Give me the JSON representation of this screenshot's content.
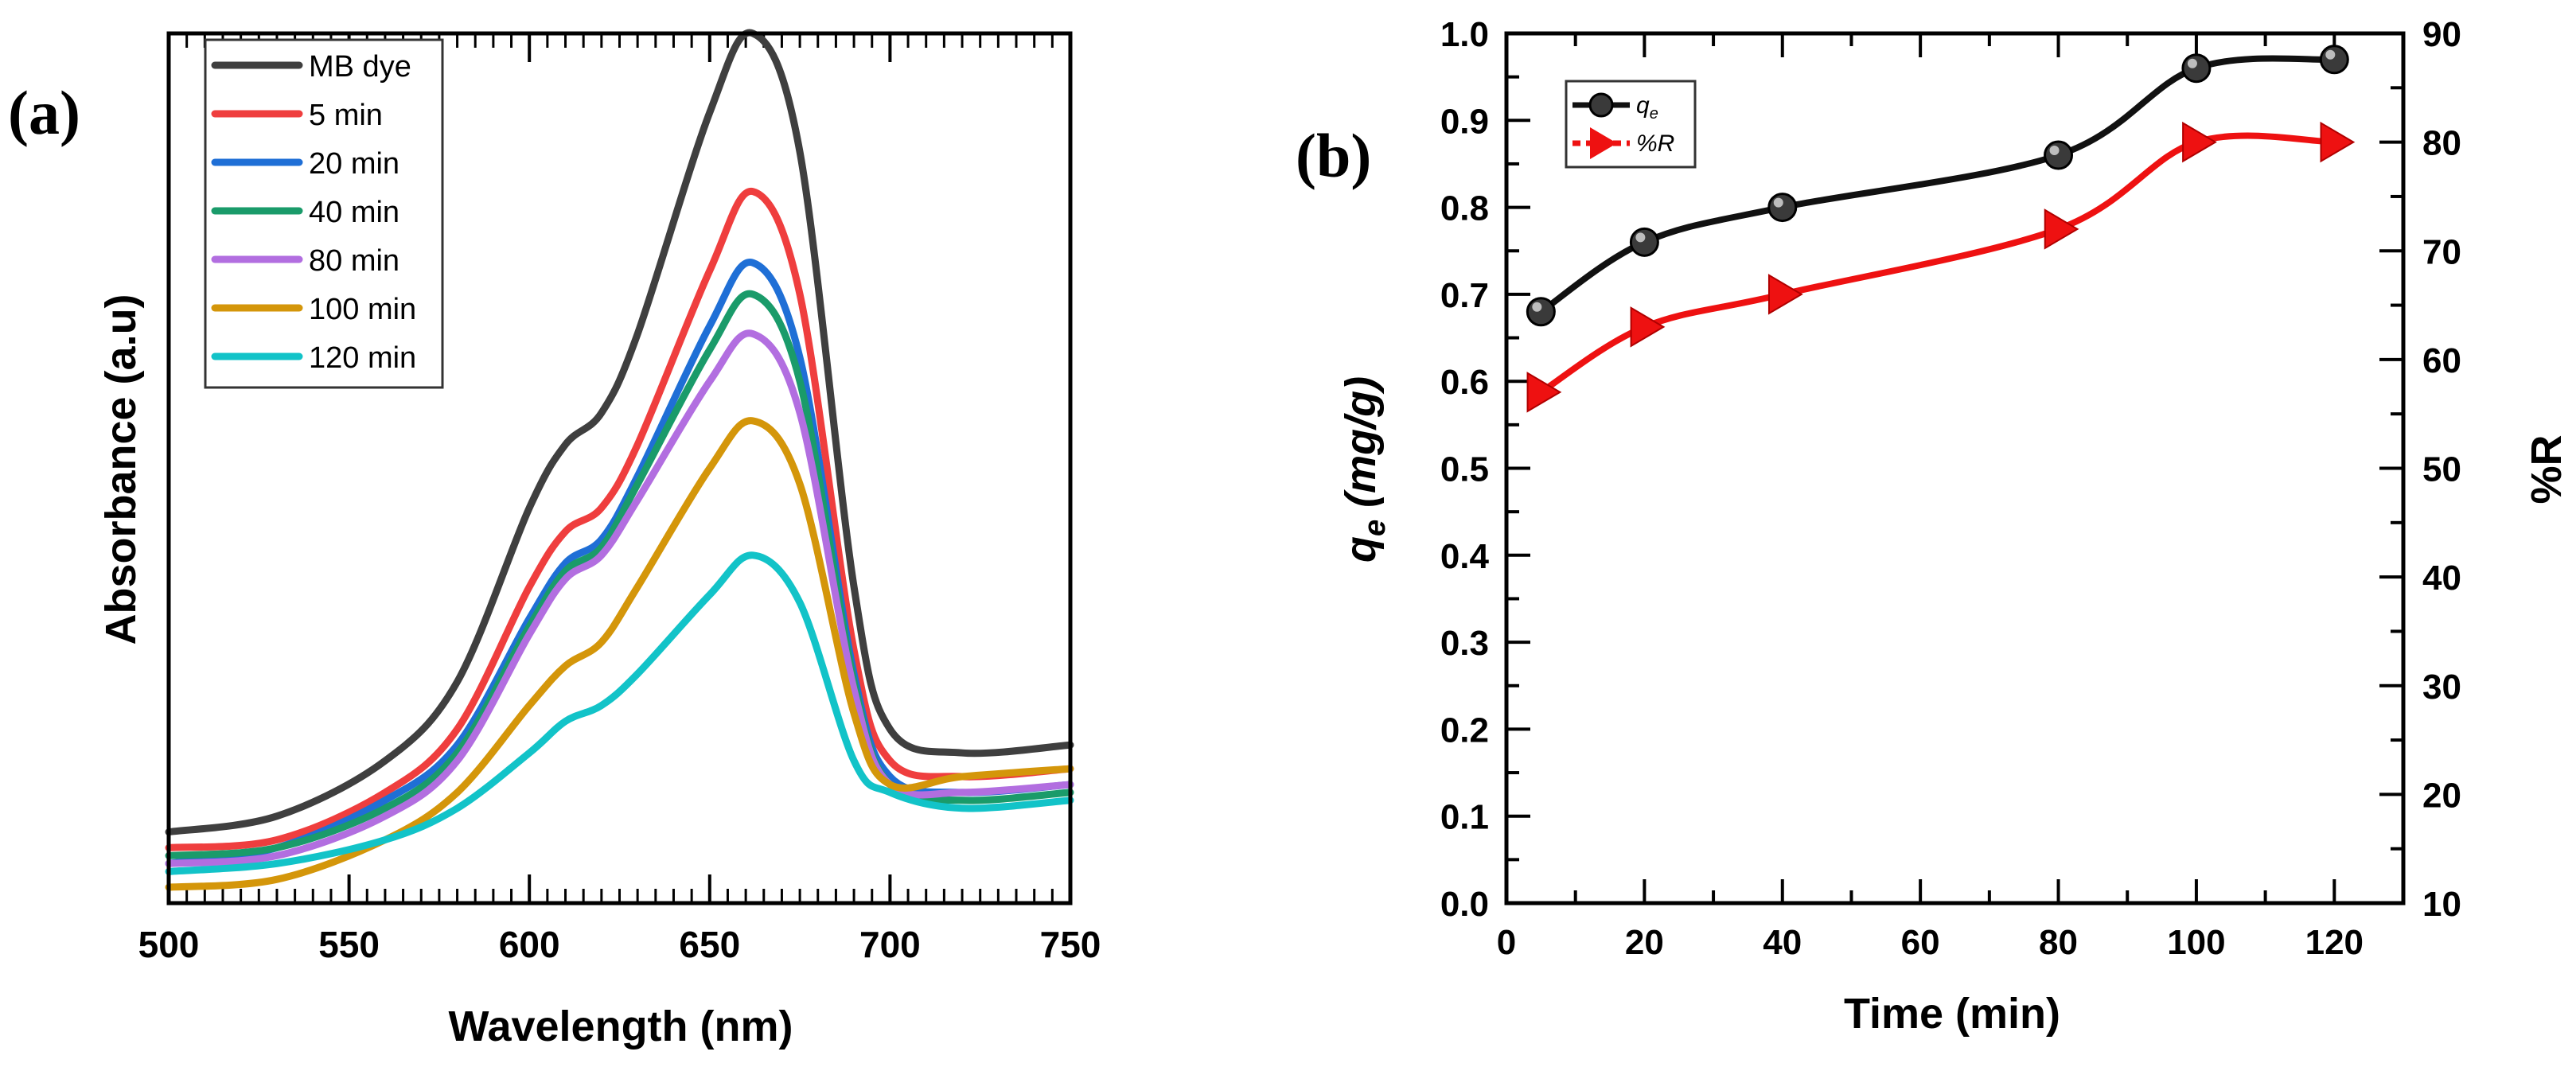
{
  "chart_data": [
    {
      "panel_label": "(a)",
      "type": "line",
      "xlabel": "Wavelength (nm)",
      "ylabel": "Absorbance (a.u)",
      "xlim": [
        500,
        750
      ],
      "ylim": [
        0,
        1.1
      ],
      "xticks": [
        500,
        550,
        600,
        650,
        700,
        750
      ],
      "yticks_shown": false,
      "legend_position": "top-left",
      "x": [
        500,
        530,
        560,
        580,
        600,
        610,
        620,
        630,
        650,
        662,
        675,
        690,
        700,
        720,
        750
      ],
      "series": [
        {
          "name": "MB dye",
          "color": "#3f3f3f",
          "values": [
            0.09,
            0.11,
            0.18,
            0.28,
            0.5,
            0.58,
            0.62,
            0.72,
            1.0,
            1.1,
            0.95,
            0.4,
            0.22,
            0.19,
            0.2
          ]
        },
        {
          "name": "5 min",
          "color": "#ef3e3e",
          "values": [
            0.07,
            0.08,
            0.14,
            0.22,
            0.4,
            0.47,
            0.5,
            0.58,
            0.8,
            0.9,
            0.77,
            0.32,
            0.18,
            0.16,
            0.17
          ]
        },
        {
          "name": "20 min",
          "color": "#1f6fd6",
          "values": [
            0.05,
            0.07,
            0.13,
            0.2,
            0.36,
            0.43,
            0.46,
            0.54,
            0.73,
            0.81,
            0.69,
            0.29,
            0.16,
            0.14,
            0.15
          ]
        },
        {
          "name": "40 min",
          "color": "#1a9b6a",
          "values": [
            0.06,
            0.07,
            0.12,
            0.19,
            0.35,
            0.42,
            0.45,
            0.53,
            0.7,
            0.77,
            0.66,
            0.28,
            0.15,
            0.13,
            0.14
          ]
        },
        {
          "name": "80 min",
          "color": "#b26ee0",
          "values": [
            0.05,
            0.06,
            0.11,
            0.18,
            0.34,
            0.41,
            0.44,
            0.51,
            0.66,
            0.72,
            0.62,
            0.27,
            0.15,
            0.14,
            0.15
          ]
        },
        {
          "name": "100 min",
          "color": "#d4960a",
          "values": [
            0.02,
            0.03,
            0.08,
            0.14,
            0.25,
            0.3,
            0.33,
            0.4,
            0.55,
            0.61,
            0.53,
            0.24,
            0.15,
            0.16,
            0.17
          ]
        },
        {
          "name": "120 min",
          "color": "#12c3c8",
          "values": [
            0.04,
            0.05,
            0.08,
            0.12,
            0.19,
            0.23,
            0.25,
            0.29,
            0.39,
            0.44,
            0.38,
            0.18,
            0.14,
            0.12,
            0.13
          ]
        }
      ]
    },
    {
      "panel_label": "(b)",
      "type": "line",
      "xlabel": "Time (min)",
      "ylabel": "qe (mg/g)",
      "ylabel_sub": "e",
      "ylabel_main": "q",
      "ylabel_units": " (mg/g)",
      "y2label": "%R",
      "xlim": [
        0,
        130
      ],
      "ylim": [
        0.0,
        1.0
      ],
      "y2lim": [
        10,
        90
      ],
      "xticks": [
        0,
        20,
        40,
        60,
        80,
        100,
        120
      ],
      "yticks": [
        "0.0",
        "0.1",
        "0.2",
        "0.3",
        "0.4",
        "0.5",
        "0.6",
        "0.7",
        "0.8",
        "0.9",
        "1.0"
      ],
      "y2ticks": [
        10,
        20,
        30,
        40,
        50,
        60,
        70,
        80,
        90
      ],
      "legend_position": "top-left",
      "x": [
        5,
        20,
        40,
        80,
        100,
        120
      ],
      "series": [
        {
          "name": "qe",
          "legend_main": "q",
          "legend_sub": "e",
          "axis": "left",
          "color": "#111111",
          "marker": "circle",
          "values": [
            0.68,
            0.76,
            0.8,
            0.86,
            0.96,
            0.97
          ]
        },
        {
          "name": "%R",
          "axis": "right",
          "color": "#ee1111",
          "marker": "triangle-right",
          "values": [
            57,
            63,
            66,
            72,
            80,
            80
          ]
        }
      ]
    }
  ]
}
